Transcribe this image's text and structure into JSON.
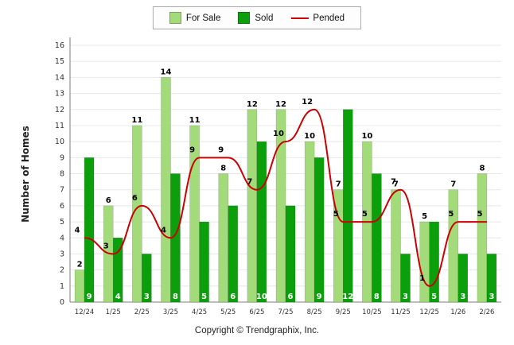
{
  "legend": {
    "items": [
      {
        "label": "For Sale",
        "color": "#a3db7b",
        "type": "box"
      },
      {
        "label": "Sold",
        "color": "#0ba00b",
        "type": "box"
      },
      {
        "label": "Pended",
        "color": "#cc0000",
        "type": "line"
      }
    ]
  },
  "footer": {
    "text": "Copyright © Trendgraphix, Inc."
  },
  "chart_data": {
    "type": "bar",
    "title": "",
    "xlabel": "",
    "ylabel": "Number of Homes",
    "ylim": [
      0,
      16
    ],
    "ytick_step": 1,
    "grid": true,
    "legend_position": "top",
    "categories": [
      "12/24",
      "1/25",
      "2/25",
      "3/25",
      "4/25",
      "5/25",
      "6/25",
      "7/25",
      "8/25",
      "9/25",
      "10/25",
      "11/25",
      "12/25",
      "1/26",
      "2/26"
    ],
    "series": [
      {
        "name": "For Sale",
        "type": "bar",
        "color": "#a3db7b",
        "label_color": "#000000",
        "label_position": "above",
        "values": [
          2,
          6,
          11,
          14,
          11,
          8,
          12,
          12,
          10,
          7,
          10,
          7,
          5,
          7,
          8
        ]
      },
      {
        "name": "Sold",
        "type": "bar",
        "color": "#0ba00b",
        "label_color": "#ffffff",
        "label_position": "inside-bottom",
        "values": [
          9,
          4,
          3,
          8,
          5,
          6,
          10,
          6,
          9,
          12,
          8,
          3,
          5,
          3,
          3
        ]
      },
      {
        "name": "Pended",
        "type": "line",
        "color": "#cc0000",
        "label_color": "#000000",
        "values": [
          4,
          3,
          6,
          4,
          9,
          9,
          7,
          10,
          12,
          5,
          5,
          7,
          1,
          5,
          5
        ]
      }
    ]
  }
}
